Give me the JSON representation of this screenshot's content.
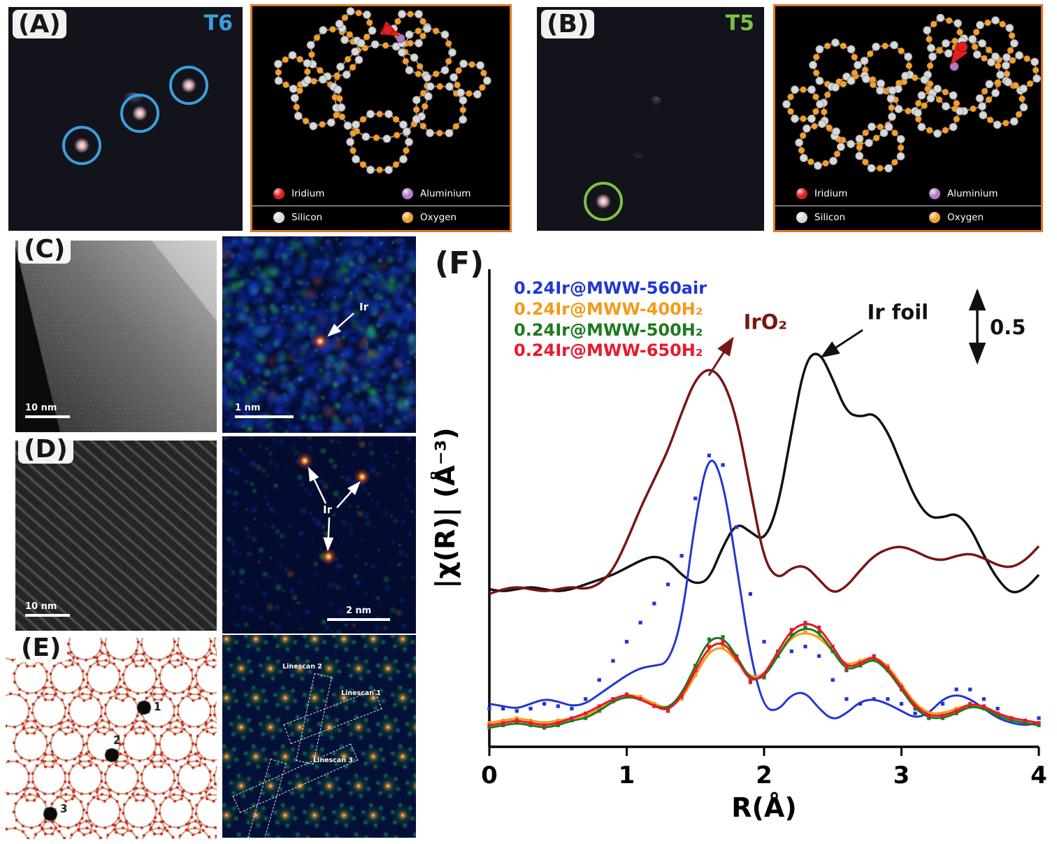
{
  "panel_a": {
    "label": "(A)",
    "site": "T6",
    "site_color": "#3aa0dc"
  },
  "panel_b": {
    "label": "(B)",
    "site": "T5",
    "site_color": "#7dc242"
  },
  "atom_legend": {
    "items": [
      {
        "name": "Iridium",
        "color": "#e02020"
      },
      {
        "name": "Aluminium",
        "color": "#b07cc6"
      },
      {
        "name": "Silicon",
        "color": "#d8d8d8"
      },
      {
        "name": "Oxygen",
        "color": "#f0a030"
      }
    ]
  },
  "panel_c": {
    "label": "(C)",
    "scale_left": "10 nm",
    "scale_right": "1 nm",
    "annotation": "Ir"
  },
  "panel_d": {
    "label": "(D)",
    "scale_left": "10 nm",
    "scale_right": "2 nm",
    "annotation": "Ir"
  },
  "panel_e": {
    "label": "(E)",
    "sites": [
      "1",
      "2",
      "3"
    ],
    "linescans": [
      "Linescan 1",
      "Linescan 2",
      "Linescan 3"
    ]
  },
  "panel_f": {
    "label": "(F)"
  },
  "chart_data": {
    "type": "line",
    "xlabel": "R(Å)",
    "ylabel": "|χ(R)| (Å⁻³)",
    "xlim": [
      0,
      4
    ],
    "ylim": [
      0,
      10
    ],
    "xticks": [
      0,
      1,
      2,
      3,
      4
    ],
    "x_start": 0,
    "x_step": 0.1,
    "grid": false,
    "scale_bar": {
      "label": "0.5",
      "value": 0.5
    },
    "annotations": [
      {
        "text": "IrO₂",
        "color": "#7a1515",
        "x": 1.82,
        "y": 8.75
      },
      {
        "text": "Ir foil",
        "color": "#111111",
        "x": 2.72,
        "y": 8.95
      }
    ],
    "legend": [
      {
        "label": "0.24Ir@MWW-560air",
        "color": "#2136d4"
      },
      {
        "label": "0.24Ir@MWW-400H₂",
        "color": "#f59a1a"
      },
      {
        "label": "0.24Ir@MWW-500H₂",
        "color": "#1d7a1d"
      },
      {
        "label": "0.24Ir@MWW-650H₂",
        "color": "#e8192c"
      }
    ],
    "series": [
      {
        "name": "Ir foil",
        "color": "#111111",
        "style": "line",
        "width": 3.5,
        "values": [
          3.3,
          3.25,
          3.3,
          3.35,
          3.3,
          3.25,
          3.3,
          3.4,
          3.5,
          3.6,
          3.75,
          3.9,
          4.0,
          3.9,
          3.6,
          3.4,
          3.5,
          4.2,
          4.7,
          4.5,
          4.3,
          5.0,
          6.6,
          8.1,
          8.3,
          7.7,
          7.0,
          6.9,
          7.0,
          6.6,
          5.9,
          5.2,
          4.8,
          4.8,
          4.9,
          4.6,
          4.0,
          3.5,
          3.2,
          3.3,
          3.6
        ]
      },
      {
        "name": "IrO₂",
        "color": "#7a1515",
        "style": "line",
        "width": 3.5,
        "values": [
          3.2,
          3.3,
          3.35,
          3.3,
          3.25,
          3.3,
          3.35,
          3.3,
          3.4,
          3.7,
          4.3,
          5.0,
          5.6,
          6.2,
          7.0,
          7.7,
          7.95,
          7.7,
          6.9,
          5.4,
          3.9,
          3.5,
          3.75,
          3.8,
          3.5,
          3.2,
          3.35,
          3.7,
          4.0,
          4.15,
          4.2,
          4.1,
          3.95,
          3.9,
          4.0,
          4.05,
          3.95,
          3.8,
          3.75,
          3.9,
          4.2
        ]
      },
      {
        "name": "0.24Ir@MWW-560air (fit)",
        "color": "#2136d4",
        "style": "line",
        "width": 3,
        "values": [
          0.9,
          0.85,
          0.8,
          0.9,
          1.0,
          0.95,
          0.85,
          0.9,
          1.1,
          1.3,
          1.5,
          1.65,
          1.7,
          1.75,
          2.6,
          4.8,
          6.2,
          5.6,
          3.8,
          1.9,
          0.8,
          0.75,
          1.1,
          1.15,
          0.8,
          0.55,
          0.7,
          0.95,
          1.0,
          0.9,
          0.75,
          0.6,
          0.7,
          1.0,
          1.1,
          1.0,
          0.8,
          0.6,
          0.5,
          0.45,
          0.5
        ]
      },
      {
        "name": "0.24Ir@MWW-560air (data)",
        "color": "#2136d4",
        "style": "scatter",
        "values": [
          0.8,
          0.8,
          0.75,
          0.8,
          0.9,
          0.85,
          0.8,
          1.0,
          1.4,
          1.8,
          2.2,
          2.6,
          3.0,
          3.4,
          4.0,
          5.2,
          6.1,
          5.9,
          4.6,
          3.2,
          2.2,
          1.9,
          2.0,
          2.1,
          1.9,
          1.4,
          1.0,
          0.9,
          1.0,
          1.0,
          0.9,
          0.7,
          0.6,
          0.9,
          1.2,
          1.2,
          1.0,
          0.8,
          0.6,
          0.5,
          0.6
        ]
      },
      {
        "name": "0.24Ir@MWW-400H₂",
        "color": "#f59a1a",
        "style": "line+markers",
        "width": 3,
        "values": [
          0.5,
          0.55,
          0.6,
          0.55,
          0.5,
          0.55,
          0.6,
          0.65,
          0.8,
          1.0,
          1.1,
          1.05,
          0.9,
          0.8,
          1.0,
          1.5,
          2.0,
          2.1,
          1.8,
          1.45,
          1.5,
          1.9,
          2.3,
          2.4,
          2.3,
          2.0,
          1.7,
          1.8,
          1.9,
          1.7,
          1.3,
          0.9,
          0.7,
          0.7,
          0.8,
          0.9,
          0.8,
          0.7,
          0.6,
          0.55,
          0.5
        ]
      },
      {
        "name": "0.24Ir@MWW-500H₂",
        "color": "#1d7a1d",
        "style": "line+markers",
        "width": 3,
        "values": [
          0.4,
          0.45,
          0.5,
          0.45,
          0.4,
          0.45,
          0.55,
          0.6,
          0.75,
          0.95,
          1.05,
          1.0,
          0.85,
          0.8,
          1.1,
          1.7,
          2.25,
          2.3,
          1.9,
          1.4,
          1.45,
          1.9,
          2.35,
          2.5,
          2.4,
          2.0,
          1.6,
          1.7,
          1.85,
          1.6,
          1.2,
          0.8,
          0.6,
          0.6,
          0.7,
          0.85,
          0.8,
          0.65,
          0.55,
          0.5,
          0.45
        ]
      },
      {
        "name": "0.24Ir@MWW-650H₂",
        "color": "#e8192c",
        "style": "line+markers",
        "width": 3,
        "values": [
          0.45,
          0.5,
          0.55,
          0.5,
          0.45,
          0.5,
          0.6,
          0.7,
          0.85,
          1.0,
          1.1,
          1.0,
          0.85,
          0.75,
          1.05,
          1.6,
          2.1,
          2.2,
          1.85,
          1.35,
          1.5,
          2.0,
          2.45,
          2.6,
          2.5,
          2.1,
          1.65,
          1.75,
          1.9,
          1.65,
          1.25,
          0.85,
          0.65,
          0.65,
          0.75,
          0.9,
          0.85,
          0.7,
          0.6,
          0.55,
          0.5
        ]
      }
    ]
  }
}
